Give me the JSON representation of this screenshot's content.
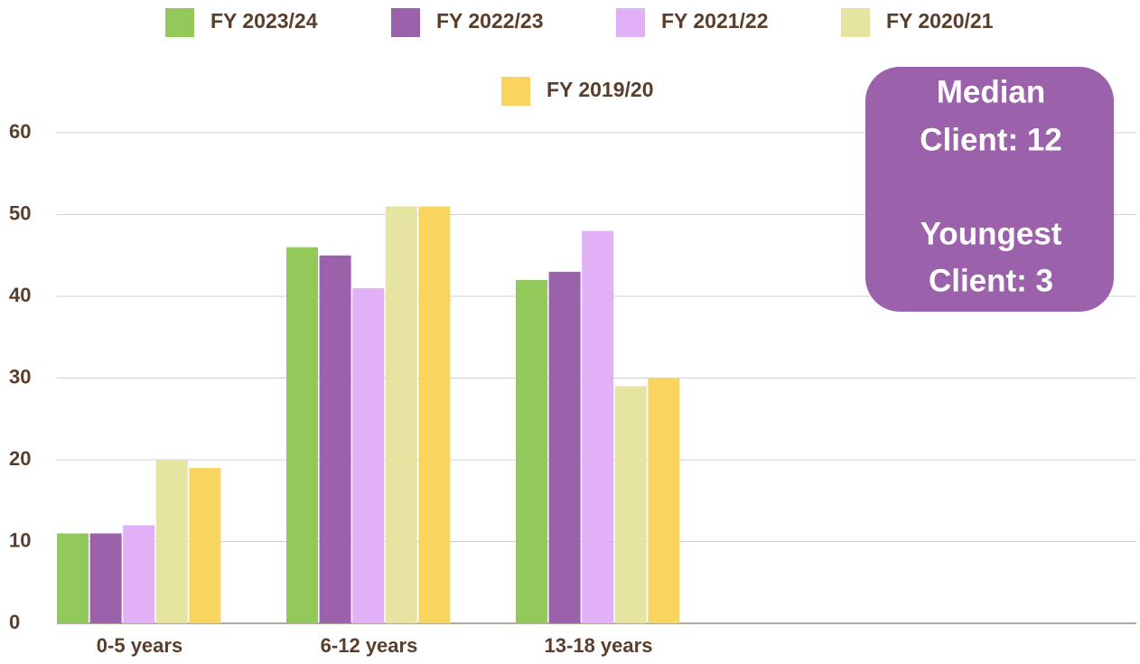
{
  "chart_data": {
    "type": "bar",
    "categories": [
      "0-5 years",
      "6-12 years",
      "13-18 years"
    ],
    "series": [
      {
        "name": "FY 2023/24",
        "color": "#92c95a",
        "values": [
          11,
          46,
          42
        ]
      },
      {
        "name": "FY 2022/23",
        "color": "#9b62ab",
        "values": [
          11,
          45,
          43
        ]
      },
      {
        "name": "FY 2021/22",
        "color": "#e2b0f7",
        "values": [
          12,
          41,
          48
        ]
      },
      {
        "name": "FY 2020/21",
        "color": "#e5e4a1",
        "values": [
          20,
          51,
          29
        ]
      },
      {
        "name": "FY 2019/20",
        "color": "#f9d45f",
        "values": [
          19,
          51,
          30
        ]
      }
    ],
    "ylim": [
      0,
      60
    ],
    "yticks": [
      0,
      10,
      20,
      30,
      40,
      50,
      60
    ],
    "grid": true,
    "legend": "top",
    "annotation": [
      "Median",
      "Client: 12",
      "Youngest",
      "Client: 3"
    ],
    "annotation_color": "#9b62ab"
  }
}
